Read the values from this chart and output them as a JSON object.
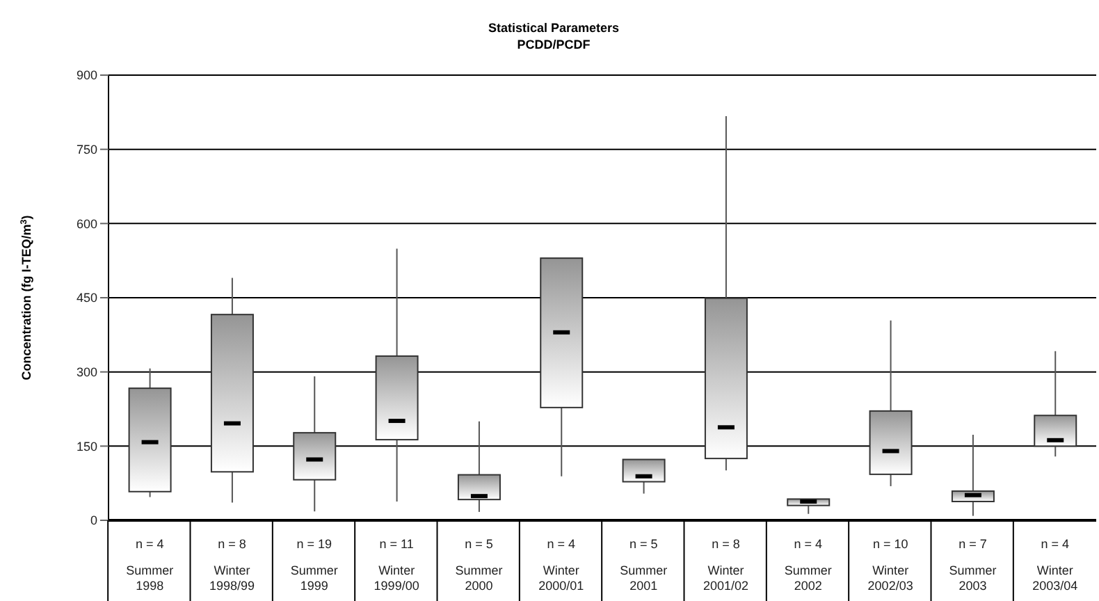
{
  "chart_data": {
    "type": "box",
    "title": "Statistical Parameters",
    "subtitle": "PCDD/PCDF",
    "ylabel": "Concentration (fg I-TEQ/m$^{3}$)",
    "categories": [
      "n = 4\nSummer\n1998",
      "n = 8\nWinter\n1998/99",
      "n = 19\nSummer\n1999",
      "n = 11\nWinter\n1999/00",
      "n = 5\nSummer\n2000",
      "n = 4\nWinter\n2000/01",
      "n = 5\nSummer\n2001",
      "n = 8\nWinter\n2001/02",
      "n = 4\nSummer\n2002",
      "n = 10\nWinter\n2002/03",
      "n = 7\nSummer\n2003",
      "n = 4\nWinter\n2003/04"
    ],
    "series": [
      {
        "color": "#333333",
        "boxes": [
          {
            "low": 47,
            "q1": 58,
            "median": 158,
            "q3": 267,
            "high": 307
          },
          {
            "low": 36,
            "q1": 98,
            "median": 196,
            "q3": 416,
            "high": 490
          },
          {
            "low": 18,
            "q1": 82,
            "median": 123,
            "q3": 177,
            "high": 291
          },
          {
            "low": 38,
            "q1": 163,
            "median": 201,
            "q3": 332,
            "high": 549
          },
          {
            "low": 17,
            "q1": 42,
            "median": 49,
            "q3": 92,
            "high": 200
          },
          {
            "low": 89,
            "q1": 228,
            "median": 380,
            "q3": 530,
            "high": 530
          },
          {
            "low": 54,
            "q1": 78,
            "median": 89,
            "q3": 123,
            "high": 123
          },
          {
            "low": 101,
            "q1": 125,
            "median": 188,
            "q3": 449,
            "high": 817
          },
          {
            "low": 13,
            "q1": 30,
            "median": 38,
            "q3": 43,
            "high": 43
          },
          {
            "low": 69,
            "q1": 93,
            "median": 140,
            "q3": 221,
            "high": 404
          },
          {
            "low": 9,
            "q1": 38,
            "median": 51,
            "q3": 59,
            "high": 173
          },
          {
            "low": 129,
            "q1": 150,
            "median": 162,
            "q3": 212,
            "high": 342
          }
        ]
      }
    ],
    "ylim": [
      0,
      900
    ],
    "yticks": [
      0,
      150,
      300,
      450,
      600,
      750,
      900
    ],
    "grid": "y"
  }
}
